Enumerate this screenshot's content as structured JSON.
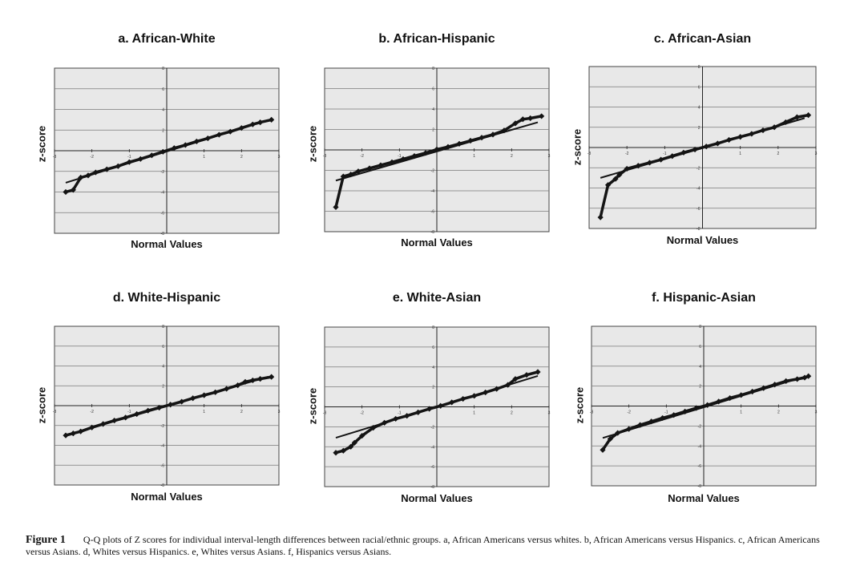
{
  "caption": {
    "label": "Figure 1",
    "text": "Q-Q plots of Z scores for individual interval-length differences between racial/ethnic groups. a, African Americans versus whites. b, African Americans versus Hispanics. c, African Americans versus Asians. d, Whites versus Hispanics. e, Whites versus Asians. f, Hispanics versus Asians."
  },
  "colors": {
    "plot_bg": "#e8e8e8",
    "grid": "#7a7a7a",
    "marker": "#141414"
  },
  "chart_data": [
    {
      "type": "scatter",
      "title": "a. African-White",
      "xlabel": "Normal Values",
      "ylabel": "z-score",
      "xlim": [
        -3,
        3
      ],
      "ylim": [
        -8,
        8
      ],
      "x_ticks": [
        "-3",
        "-2",
        "-1",
        "0",
        "1",
        "2",
        "3"
      ],
      "y_ticks": [
        "8",
        "6",
        "4",
        "2",
        "-2",
        "-4",
        "-6",
        "-8"
      ],
      "grid": true,
      "fit_line": {
        "x": [
          -2.7,
          2.7
        ],
        "y": [
          -3.1,
          2.95
        ]
      },
      "series": [
        {
          "x": [
            -2.7,
            -2.5,
            -2.3,
            -2.1,
            -1.9,
            -1.6,
            -1.3,
            -1.0,
            -0.7,
            -0.4,
            -0.1,
            0.2,
            0.5,
            0.8,
            1.1,
            1.4,
            1.7,
            2.0,
            2.3,
            2.5,
            2.8
          ],
          "y": [
            -4.0,
            -3.8,
            -2.6,
            -2.4,
            -2.1,
            -1.8,
            -1.5,
            -1.1,
            -0.8,
            -0.45,
            -0.1,
            0.25,
            0.55,
            0.9,
            1.2,
            1.55,
            1.85,
            2.2,
            2.55,
            2.75,
            3.0
          ]
        }
      ]
    },
    {
      "type": "scatter",
      "title": "b. African-Hispanic",
      "xlabel": "Normal Values",
      "ylabel": "z-score",
      "xlim": [
        -3,
        3
      ],
      "ylim": [
        -8,
        8
      ],
      "x_ticks": [
        "-3",
        "-2",
        "-1",
        "0",
        "1",
        "2",
        "3"
      ],
      "y_ticks": [
        "8",
        "6",
        "4",
        "2",
        "-2",
        "-4",
        "-6",
        "-8"
      ],
      "grid": true,
      "fit_line": {
        "x": [
          -2.7,
          2.7
        ],
        "y": [
          -3.0,
          2.7
        ]
      },
      "series": [
        {
          "x": [
            -2.7,
            -2.5,
            -2.3,
            -2.1,
            -1.8,
            -1.5,
            -1.2,
            -0.9,
            -0.6,
            -0.3,
            0.0,
            0.3,
            0.6,
            0.9,
            1.2,
            1.5,
            1.8,
            2.1,
            2.3,
            2.5,
            2.8
          ],
          "y": [
            -5.6,
            -2.6,
            -2.4,
            -2.1,
            -1.8,
            -1.5,
            -1.2,
            -0.9,
            -0.6,
            -0.3,
            0.05,
            0.3,
            0.6,
            0.9,
            1.2,
            1.5,
            1.9,
            2.6,
            3.0,
            3.1,
            3.3
          ]
        }
      ]
    },
    {
      "type": "scatter",
      "title": "c. African-Asian",
      "xlabel": "Normal Values",
      "ylabel": "z-score",
      "xlim": [
        -3,
        3
      ],
      "ylim": [
        -8,
        8
      ],
      "x_ticks": [
        "-3",
        "-2",
        "-1",
        "0",
        "1",
        "2",
        "3"
      ],
      "y_ticks": [
        "8",
        "6",
        "4",
        "2",
        "-2",
        "-4",
        "-6",
        "-8"
      ],
      "grid": true,
      "fit_line": {
        "x": [
          -2.7,
          2.7
        ],
        "y": [
          -3.0,
          2.9
        ]
      },
      "series": [
        {
          "x": [
            -2.7,
            -2.5,
            -2.3,
            -2.2,
            -2.0,
            -1.7,
            -1.4,
            -1.1,
            -0.8,
            -0.5,
            -0.2,
            0.1,
            0.4,
            0.7,
            1.0,
            1.3,
            1.6,
            1.9,
            2.2,
            2.5,
            2.8
          ],
          "y": [
            -6.9,
            -3.7,
            -3.1,
            -2.7,
            -2.1,
            -1.8,
            -1.5,
            -1.2,
            -0.85,
            -0.5,
            -0.2,
            0.1,
            0.4,
            0.75,
            1.05,
            1.35,
            1.7,
            2.0,
            2.5,
            3.0,
            3.2
          ]
        }
      ]
    },
    {
      "type": "scatter",
      "title": "d. White-Hispanic",
      "xlabel": "Normal Values",
      "ylabel": "z-score",
      "xlim": [
        -3,
        3
      ],
      "ylim": [
        -8,
        8
      ],
      "x_ticks": [
        "-3",
        "-2",
        "-1",
        "0",
        "1",
        "2",
        "3"
      ],
      "y_ticks": [
        "8",
        "6",
        "4",
        "2",
        "-2",
        "-4",
        "-6",
        "-8"
      ],
      "grid": true,
      "fit_line": {
        "x": [
          -2.7,
          2.7
        ],
        "y": [
          -3.0,
          2.9
        ]
      },
      "series": [
        {
          "x": [
            -2.7,
            -2.5,
            -2.3,
            -2.0,
            -1.7,
            -1.4,
            -1.1,
            -0.8,
            -0.5,
            -0.2,
            0.1,
            0.4,
            0.7,
            1.0,
            1.3,
            1.6,
            1.9,
            2.1,
            2.3,
            2.5,
            2.8
          ],
          "y": [
            -3.0,
            -2.8,
            -2.6,
            -2.2,
            -1.85,
            -1.5,
            -1.2,
            -0.85,
            -0.5,
            -0.2,
            0.1,
            0.4,
            0.75,
            1.05,
            1.35,
            1.7,
            2.05,
            2.4,
            2.55,
            2.7,
            2.9
          ]
        }
      ]
    },
    {
      "type": "scatter",
      "title": "e. White-Asian",
      "xlabel": "Normal Values",
      "ylabel": "z-score",
      "xlim": [
        -3,
        3
      ],
      "ylim": [
        -8,
        8
      ],
      "x_ticks": [
        "-3",
        "-2",
        "-1",
        "0",
        "1",
        "2",
        "3"
      ],
      "y_ticks": [
        "8",
        "6",
        "4",
        "2",
        "-2",
        "-4",
        "-6",
        "-8"
      ],
      "grid": true,
      "fit_line": {
        "x": [
          -2.7,
          2.7
        ],
        "y": [
          -3.1,
          3.1
        ]
      },
      "series": [
        {
          "x": [
            -2.7,
            -2.5,
            -2.3,
            -2.2,
            -2.0,
            -1.7,
            -1.4,
            -1.1,
            -0.8,
            -0.5,
            -0.2,
            0.1,
            0.4,
            0.7,
            1.0,
            1.3,
            1.6,
            1.9,
            2.1,
            2.4,
            2.7
          ],
          "y": [
            -4.6,
            -4.4,
            -4.0,
            -3.6,
            -2.9,
            -2.1,
            -1.6,
            -1.2,
            -0.9,
            -0.55,
            -0.2,
            0.1,
            0.45,
            0.8,
            1.1,
            1.45,
            1.8,
            2.2,
            2.8,
            3.2,
            3.5
          ]
        }
      ]
    },
    {
      "type": "scatter",
      "title": "f. Hispanic-Asian",
      "xlabel": "Normal Values",
      "ylabel": "z-score",
      "xlim": [
        -3,
        3
      ],
      "ylim": [
        -8,
        8
      ],
      "x_ticks": [
        "-3",
        "-2",
        "-1",
        "0",
        "1",
        "2",
        "3"
      ],
      "y_ticks": [
        "8",
        "6",
        "4",
        "2",
        "-2",
        "-4",
        "-6",
        "-8"
      ],
      "grid": true,
      "fit_line": {
        "x": [
          -2.7,
          2.7
        ],
        "y": [
          -3.2,
          2.95
        ]
      },
      "series": [
        {
          "x": [
            -2.7,
            -2.5,
            -2.3,
            -2.0,
            -1.7,
            -1.4,
            -1.1,
            -0.8,
            -0.5,
            -0.2,
            0.1,
            0.4,
            0.7,
            1.0,
            1.3,
            1.6,
            1.9,
            2.2,
            2.5,
            2.7,
            2.8
          ],
          "y": [
            -4.4,
            -3.3,
            -2.7,
            -2.3,
            -1.9,
            -1.55,
            -1.2,
            -0.9,
            -0.55,
            -0.2,
            0.1,
            0.45,
            0.8,
            1.1,
            1.45,
            1.8,
            2.15,
            2.5,
            2.7,
            2.85,
            3.0
          ]
        }
      ]
    }
  ]
}
